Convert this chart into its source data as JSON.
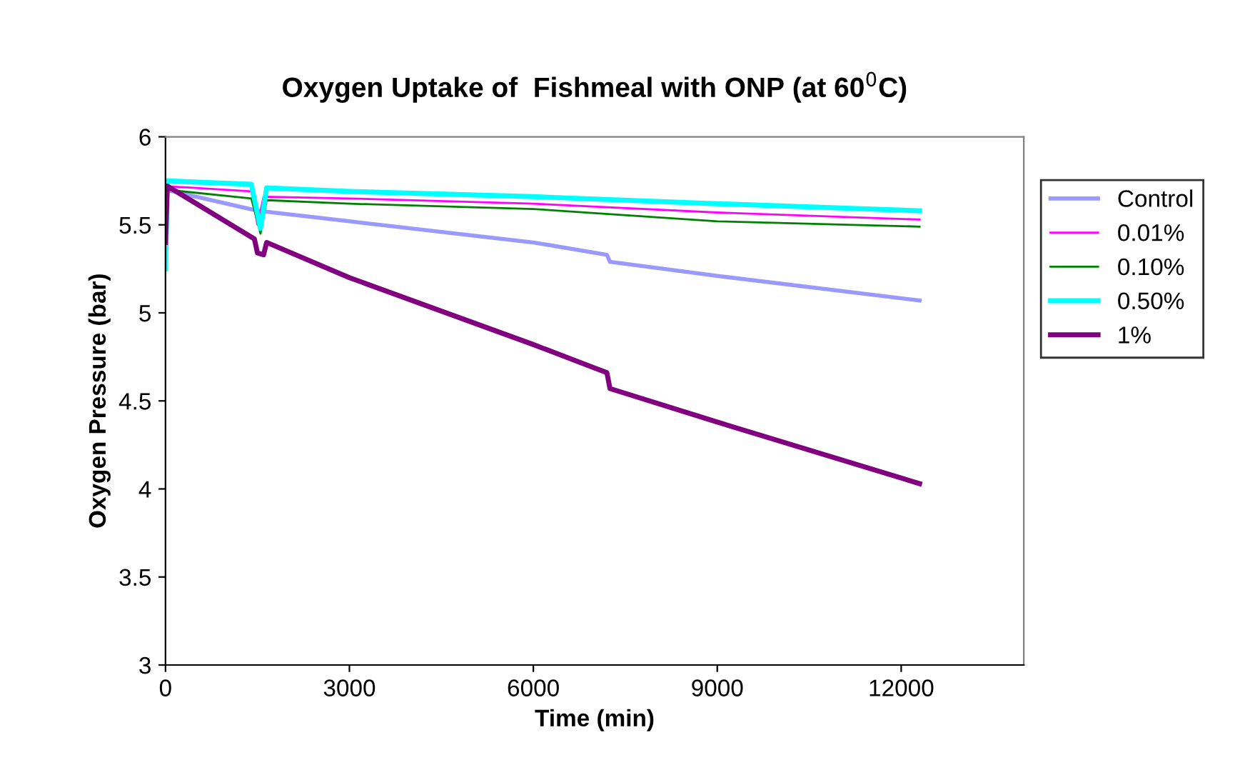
{
  "chart_data": {
    "type": "line",
    "title": "Oxygen Uptake of  Fishmeal with ONP (at 60$^{0}$C)",
    "xlabel": "Time (min)",
    "ylabel": "Oxygen Pressure (bar)",
    "xlim": [
      0,
      14000
    ],
    "xticks": [
      0,
      3000,
      6000,
      9000,
      12000
    ],
    "ylim": [
      3,
      6
    ],
    "yticks": [
      3,
      3.5,
      4,
      4.5,
      5,
      5.5,
      6
    ],
    "grid": false,
    "legend": "right",
    "marker": "none",
    "line_style": "solid",
    "series": [
      {
        "name": "Control",
        "color": "#9999ff",
        "x": [
          0,
          1500,
          3000,
          6000,
          7200,
          7250,
          9000,
          12300
        ],
        "values": [
          5.7,
          5.58,
          5.52,
          5.4,
          5.33,
          5.29,
          5.21,
          5.07
        ]
      },
      {
        "name": "0.01%",
        "color": "#ff00ff",
        "x": [
          0,
          1400,
          1500,
          1600,
          3000,
          6000,
          9000,
          12300
        ],
        "values": [
          5.72,
          5.69,
          5.5,
          5.66,
          5.65,
          5.62,
          5.57,
          5.53
        ]
      },
      {
        "name": "0.10%",
        "color": "#008000",
        "x": [
          0,
          1400,
          1550,
          1650,
          3000,
          6000,
          9000,
          12300
        ],
        "values": [
          5.7,
          5.65,
          5.45,
          5.64,
          5.62,
          5.59,
          5.52,
          5.49
        ]
      },
      {
        "name": "0.50%",
        "color": "#00ffff",
        "x": [
          0,
          30,
          1400,
          1550,
          1650,
          3000,
          6000,
          9000,
          12300
        ],
        "values": [
          5.25,
          5.75,
          5.73,
          5.48,
          5.71,
          5.69,
          5.66,
          5.62,
          5.58
        ]
      },
      {
        "name": "1%",
        "color": "#800080",
        "x": [
          0,
          30,
          1450,
          1500,
          1600,
          1650,
          3000,
          6000,
          7200,
          7250,
          9000,
          12300
        ],
        "values": [
          5.4,
          5.72,
          5.42,
          5.34,
          5.33,
          5.4,
          5.2,
          4.82,
          4.66,
          4.57,
          4.38,
          4.03
        ]
      }
    ]
  }
}
